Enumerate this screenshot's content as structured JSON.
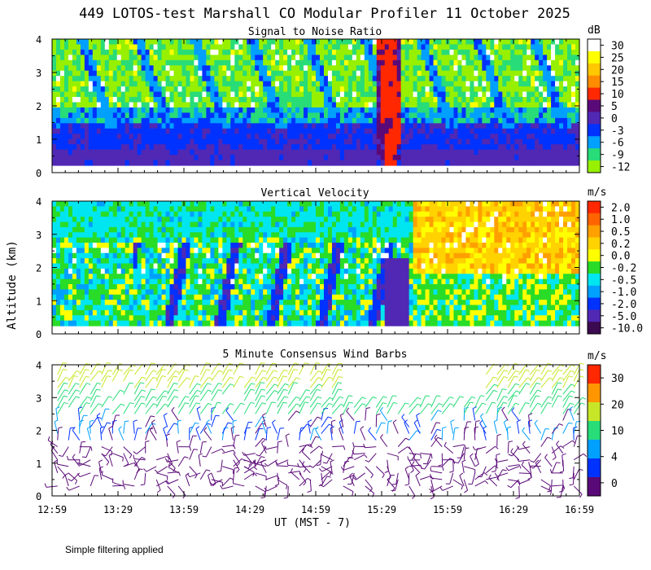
{
  "title": "449 LOTOS-test Marshall CO Modular Profiler 11 October 2025",
  "ylabel": "Altitude (km)",
  "xlabel": "UT  (MST - 7)",
  "footnote": "Simple filtering applied",
  "x_ticks": [
    "12:59",
    "13:29",
    "13:59",
    "14:29",
    "14:59",
    "15:29",
    "15:59",
    "16:29",
    "16:59"
  ],
  "chart_data": [
    {
      "type": "heatmap",
      "title": "Signal to Noise Ratio",
      "units": "dB",
      "ylim": [
        0,
        4
      ],
      "y_ticks": [
        "0",
        "1",
        "2",
        "3",
        "4"
      ],
      "colorbar": {
        "labels": [
          "30",
          "25",
          "20",
          "15",
          "10",
          "5",
          "0",
          "-3",
          "-6",
          "-9",
          "-12"
        ],
        "colors": [
          "#ffffff",
          "#ffff00",
          "#ffc800",
          "#ff8c00",
          "#ff2800",
          "#5a0a78",
          "#5028b4",
          "#0032ff",
          "#00a0ff",
          "#28dc78",
          "#96f000"
        ]
      }
    },
    {
      "type": "heatmap",
      "title": "Vertical Velocity",
      "units": "m/s",
      "ylim": [
        0,
        4
      ],
      "y_ticks": [
        "0",
        "1",
        "2",
        "3",
        "4"
      ],
      "colorbar": {
        "labels": [
          "2.0",
          "1.0",
          "0.5",
          "0.2",
          "0.0",
          "-0.2",
          "-0.5",
          "-1.0",
          "-2.0",
          "-5.0",
          "-10.0"
        ],
        "colors": [
          "#ff2800",
          "#ff6400",
          "#ffa000",
          "#ffd200",
          "#ffff00",
          "#28dc28",
          "#00e6f0",
          "#00a0ff",
          "#0032ff",
          "#5028b4",
          "#3c0a50"
        ]
      }
    },
    {
      "type": "scatter",
      "title": "5 Minute Consensus Wind Barbs",
      "units": "m/s",
      "ylim": [
        0,
        4
      ],
      "y_ticks": [
        "0",
        "1",
        "2",
        "3",
        "4"
      ],
      "colorbar": {
        "labels": [
          "30",
          "20",
          "10",
          "4",
          "0"
        ],
        "colors": [
          "#ff2800",
          "#ff9600",
          "#c8e628",
          "#28dc78",
          "#00a0ff",
          "#0032ff",
          "#5a0a78"
        ]
      }
    }
  ]
}
